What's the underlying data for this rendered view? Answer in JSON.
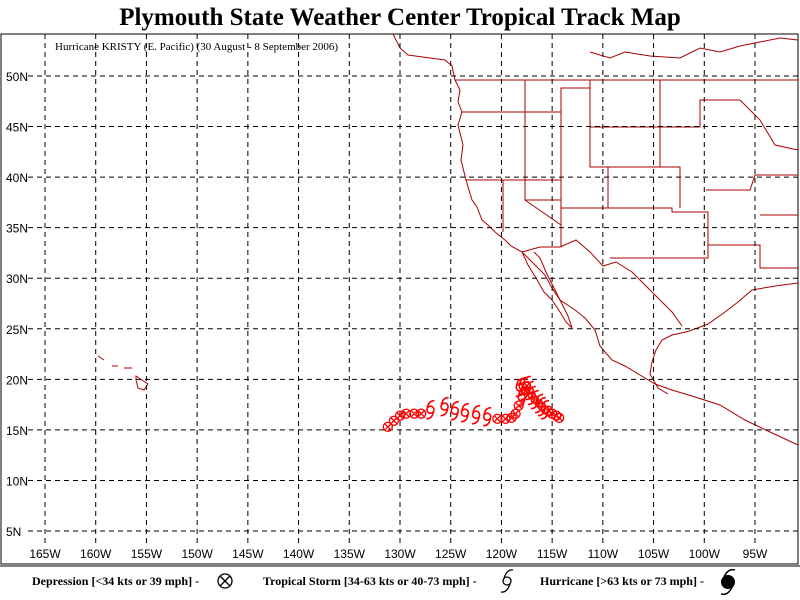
{
  "title": "Plymouth State Weather Center Tropical Track Map",
  "subtitle": "Hurricane KRISTY (E. Pacific) (30 August - 8 September 2006)",
  "colors": {
    "track": "#ff0000",
    "coast": "#aa0000",
    "grid": "#000000",
    "frame": "#000000"
  },
  "axes": {
    "lat_labels": [
      "5N",
      "10N",
      "15N",
      "20N",
      "25N",
      "30N",
      "35N",
      "40N",
      "45N",
      "50N"
    ],
    "lon_labels": [
      "165W",
      "160W",
      "155W",
      "150W",
      "145W",
      "140W",
      "135W",
      "130W",
      "125W",
      "120W",
      "115W",
      "110W",
      "105W",
      "100W",
      "95W"
    ],
    "lat_range": [
      3,
      57
    ],
    "lon_range": [
      -168,
      -90
    ]
  },
  "legend": {
    "depression": "Depression [<34 kts or 39 mph] -",
    "tropical_storm": "Tropical Storm [34-63 kts or 40-73 mph] -",
    "hurricane": "Hurricane [>63 kts or 73 mph] -",
    "depression_icon": "depression-symbol",
    "tropical_storm_icon": "tropical-storm-symbol",
    "hurricane_icon": "hurricane-symbol"
  },
  "track": [
    {
      "lon": -131.2,
      "lat": 15.3,
      "cat": "D"
    },
    {
      "lon": -130.6,
      "lat": 15.9,
      "cat": "D"
    },
    {
      "lon": -130.0,
      "lat": 16.4,
      "cat": "D"
    },
    {
      "lon": -129.4,
      "lat": 16.6,
      "cat": "D"
    },
    {
      "lon": -128.6,
      "lat": 16.6,
      "cat": "D"
    },
    {
      "lon": -127.9,
      "lat": 16.6,
      "cat": "D"
    },
    {
      "lon": -127.0,
      "lat": 17.0,
      "cat": "TS"
    },
    {
      "lon": -125.6,
      "lat": 17.3,
      "cat": "TS"
    },
    {
      "lon": -124.6,
      "lat": 16.9,
      "cat": "TS"
    },
    {
      "lon": -123.6,
      "lat": 16.7,
      "cat": "TS"
    },
    {
      "lon": -122.5,
      "lat": 16.5,
      "cat": "TS"
    },
    {
      "lon": -121.4,
      "lat": 16.3,
      "cat": "TS"
    },
    {
      "lon": -120.4,
      "lat": 16.1,
      "cat": "D"
    },
    {
      "lon": -119.6,
      "lat": 16.1,
      "cat": "D"
    },
    {
      "lon": -119.0,
      "lat": 16.2,
      "cat": "D"
    },
    {
      "lon": -118.6,
      "lat": 16.6,
      "cat": "D"
    },
    {
      "lon": -118.3,
      "lat": 17.4,
      "cat": "D"
    },
    {
      "lon": -118.0,
      "lat": 18.2,
      "cat": "TS"
    },
    {
      "lon": -117.7,
      "lat": 18.9,
      "cat": "TS"
    },
    {
      "lon": -117.9,
      "lat": 19.3,
      "cat": "TS"
    },
    {
      "lon": -118.2,
      "lat": 19.2,
      "cat": "TS"
    },
    {
      "lon": -117.5,
      "lat": 19.4,
      "cat": "TS"
    },
    {
      "lon": -117.2,
      "lat": 18.9,
      "cat": "TS"
    },
    {
      "lon": -117.0,
      "lat": 18.4,
      "cat": "TS"
    },
    {
      "lon": -116.7,
      "lat": 18.0,
      "cat": "TS"
    },
    {
      "lon": -116.3,
      "lat": 17.6,
      "cat": "TS"
    },
    {
      "lon": -116.0,
      "lat": 17.3,
      "cat": "TS"
    },
    {
      "lon": -115.7,
      "lat": 17.0,
      "cat": "TS"
    },
    {
      "lon": -115.4,
      "lat": 16.9,
      "cat": "D"
    },
    {
      "lon": -115.0,
      "lat": 16.6,
      "cat": "D"
    },
    {
      "lon": -114.6,
      "lat": 16.4,
      "cat": "D"
    },
    {
      "lon": -114.3,
      "lat": 16.2,
      "cat": "D"
    }
  ]
}
